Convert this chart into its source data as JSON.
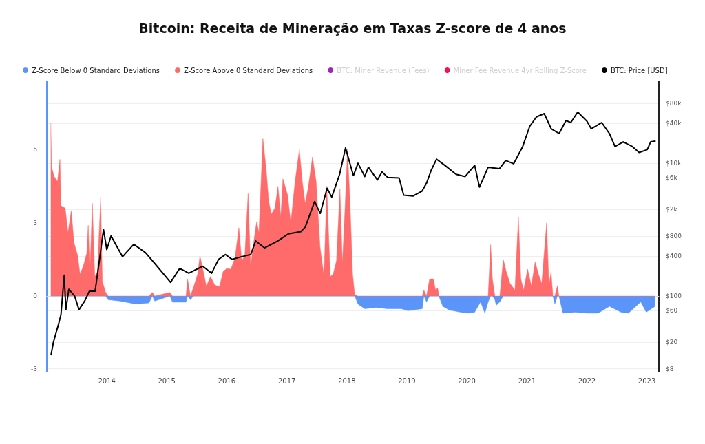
{
  "chart_data": {
    "type": "area",
    "title": "Bitcoin: Receita de Mineração em Taxas Z-score de 4 anos",
    "x": [
      "2013-01-25",
      "2013-01-30",
      "2013-02-14",
      "2013-03-07",
      "2013-03-22",
      "2013-03-28",
      "2013-04-23",
      "2013-05-10",
      "2013-05-30",
      "2013-06-15",
      "2013-07-08",
      "2013-07-22",
      "2013-08-10",
      "2013-09-01",
      "2013-09-10",
      "2013-09-20",
      "2013-10-05",
      "2013-10-20",
      "2013-11-05",
      "2013-11-25",
      "2013-12-05",
      "2013-12-25",
      "2014-01-10",
      "2014-03-20",
      "2014-06-28",
      "2014-09-15",
      "2014-10-05",
      "2014-10-20",
      "2015-01-20",
      "2015-02-05",
      "2015-04-28",
      "2015-05-08",
      "2015-05-25",
      "2015-06-12",
      "2015-07-08",
      "2015-07-22",
      "2015-08-12",
      "2015-08-30",
      "2015-09-24",
      "2015-10-20",
      "2015-11-18",
      "2015-12-10",
      "2016-01-01",
      "2016-01-26",
      "2016-02-20",
      "2016-03-15",
      "2016-04-01",
      "2016-04-20",
      "2016-05-10",
      "2016-05-25",
      "2016-06-15",
      "2016-07-01",
      "2016-07-15",
      "2016-08-08",
      "2016-08-28",
      "2016-09-12",
      "2016-09-28",
      "2016-10-20",
      "2016-11-08",
      "2016-11-25",
      "2016-12-08",
      "2017-01-05",
      "2017-01-25",
      "2017-02-20",
      "2017-03-18",
      "2017-04-05",
      "2017-04-22",
      "2017-05-10",
      "2017-06-06",
      "2017-06-28",
      "2017-07-22",
      "2017-08-15",
      "2017-09-01",
      "2017-09-22",
      "2017-10-10",
      "2017-10-30",
      "2017-11-20",
      "2017-12-05",
      "2017-12-20",
      "2018-01-05",
      "2018-01-20",
      "2018-02-05",
      "2018-02-18",
      "2018-03-10",
      "2018-04-20",
      "2018-06-28",
      "2018-09-05",
      "2018-11-28",
      "2019-01-08",
      "2019-04-05",
      "2019-04-15",
      "2019-05-01",
      "2019-05-20",
      "2019-06-12",
      "2019-06-25",
      "2019-07-08",
      "2019-07-15",
      "2019-08-08",
      "2019-09-15",
      "2019-11-25",
      "2020-01-08",
      "2020-02-18",
      "2020-03-25",
      "2020-04-20",
      "2020-05-10",
      "2020-05-25",
      "2020-06-05",
      "2020-06-20",
      "2020-06-28",
      "2020-07-20",
      "2020-08-10",
      "2020-08-28",
      "2020-09-20",
      "2020-10-20",
      "2020-11-10",
      "2020-11-25",
      "2020-12-12",
      "2021-01-05",
      "2021-01-28",
      "2021-02-20",
      "2021-03-12",
      "2021-04-01",
      "2021-05-01",
      "2021-05-15",
      "2021-05-28",
      "2021-06-08",
      "2021-06-20",
      "2021-07-05",
      "2021-07-15",
      "2021-08-08",
      "2021-10-22",
      "2022-01-01",
      "2022-03-10",
      "2022-05-18",
      "2022-07-28",
      "2022-09-10",
      "2022-11-25",
      "2022-12-28",
      "2023-02-20"
    ],
    "series": [
      {
        "name": "Z-Score Below 0 Standard Deviations",
        "color": "#5b95f9",
        "values": [
          0,
          0,
          0,
          0,
          0,
          0,
          0,
          0,
          0,
          0,
          0,
          0,
          0,
          0,
          0,
          0,
          0,
          0,
          0,
          0,
          0,
          0,
          -0.15,
          -0.2,
          -0.33,
          -0.28,
          0,
          -0.2,
          0,
          -0.25,
          -0.25,
          0,
          -0.15,
          0,
          0,
          0,
          0,
          0,
          0,
          0,
          0,
          0,
          0,
          0,
          0,
          0,
          0,
          0,
          0,
          0,
          0,
          0,
          0,
          0,
          0,
          0,
          0,
          0,
          0,
          0,
          0,
          0,
          0,
          0,
          0,
          0,
          0,
          0,
          0,
          0,
          0,
          0,
          0,
          0,
          0,
          0,
          0,
          0,
          0,
          0,
          0,
          0,
          0,
          -0.33,
          -0.52,
          -0.47,
          -0.52,
          -0.52,
          -0.6,
          -0.52,
          0,
          -0.24,
          0,
          0,
          0,
          0,
          0,
          -0.42,
          -0.57,
          -0.66,
          -0.7,
          -0.66,
          -0.24,
          -0.7,
          -0.24,
          0,
          0,
          -0.15,
          -0.38,
          -0.24,
          0,
          0,
          0,
          0,
          0,
          0,
          0,
          0,
          0,
          0,
          0,
          0,
          0,
          0,
          0,
          0,
          -0.33,
          0,
          0,
          -0.7,
          -0.66,
          -0.7,
          -0.7,
          -0.42,
          -0.66,
          -0.7,
          -0.24,
          -0.66,
          -0.42
        ]
      },
      {
        "name": "Z-Score Above 0 Standard Deviations",
        "color": "#ff6b6b",
        "values": [
          7.1,
          5.3,
          4.9,
          4.7,
          5.6,
          3.7,
          3.6,
          2.6,
          3.5,
          2.2,
          1.65,
          0.9,
          1.2,
          1.75,
          2.9,
          0.9,
          3.8,
          0.8,
          1.0,
          4.05,
          0.6,
          0.15,
          0,
          0,
          0,
          0,
          0.15,
          0,
          0.15,
          0,
          0,
          0.7,
          0,
          0.35,
          0.9,
          1.65,
          1.0,
          0.4,
          0.8,
          0.45,
          0.38,
          1.0,
          1.13,
          1.1,
          1.55,
          2.8,
          1.45,
          1.65,
          4.2,
          1.2,
          2.3,
          3.05,
          2.6,
          6.45,
          5.2,
          3.9,
          3.35,
          3.6,
          4.5,
          3.25,
          4.8,
          4.15,
          3.0,
          4.7,
          6.0,
          4.7,
          3.8,
          4.4,
          5.7,
          4.7,
          2.0,
          0.8,
          4.5,
          0.8,
          0.9,
          1.45,
          4.4,
          1.35,
          3.45,
          6.0,
          3.9,
          0.9,
          0.05,
          0,
          0,
          0,
          0,
          0,
          0,
          0,
          0.24,
          0,
          0.7,
          0.7,
          0.24,
          0.33,
          0,
          0,
          0,
          0,
          0,
          0,
          0,
          0,
          0,
          2.1,
          0.7,
          0,
          0,
          0,
          1.5,
          1.0,
          0.52,
          0.24,
          3.25,
          0.7,
          0.24,
          1.1,
          0.42,
          1.4,
          0.9,
          0.52,
          3.0,
          0.42,
          1.0,
          0,
          0,
          0.42,
          0,
          0,
          0,
          0,
          0,
          0,
          0,
          0,
          0,
          0,
          0
        ]
      },
      {
        "name": "BTC: Miner Revenue (Fees)",
        "color": "#9c27b0",
        "values": [
          null,
          null,
          null,
          null,
          null,
          null,
          null,
          null,
          null,
          null,
          null,
          null,
          null,
          null,
          null,
          null,
          null,
          null,
          null,
          null,
          null,
          null,
          null,
          null,
          null,
          null,
          null,
          null,
          null,
          null,
          null,
          null,
          null,
          null,
          null,
          null,
          null,
          null,
          null,
          null,
          null,
          null,
          null,
          null,
          null,
          null,
          null,
          null,
          null,
          null,
          null,
          null,
          null,
          null,
          null,
          null,
          null,
          null,
          null,
          null,
          null,
          null,
          null,
          null,
          null,
          null,
          null,
          null,
          null,
          null,
          null,
          null,
          null,
          null,
          null,
          null,
          null,
          null,
          null,
          null,
          null,
          null,
          null,
          null,
          null,
          null,
          null,
          null,
          null,
          null,
          null,
          null,
          null,
          null,
          null,
          null,
          null,
          null,
          null,
          null,
          null,
          null,
          null,
          null,
          null,
          null,
          null,
          null,
          null,
          null,
          null,
          null,
          null,
          null,
          null,
          null,
          null,
          null,
          null,
          null,
          null,
          null,
          null,
          null,
          null,
          null,
          null,
          null,
          null,
          null,
          null,
          null,
          null,
          null,
          null,
          null,
          null,
          null,
          null
        ]
      },
      {
        "name": "Miner Fee Revenue 4yr Rolling Z-Score",
        "color": "#f0134d",
        "values": [
          null,
          null,
          null,
          null,
          null,
          null,
          null,
          null,
          null,
          null,
          null,
          null,
          null,
          null,
          null,
          null,
          null,
          null,
          null,
          null,
          null,
          null,
          null,
          null,
          null,
          null,
          null,
          null,
          null,
          null,
          null,
          null,
          null,
          null,
          null,
          null,
          null,
          null,
          null,
          null,
          null,
          null,
          null,
          null,
          null,
          null,
          null,
          null,
          null,
          null,
          null,
          null,
          null,
          null,
          null,
          null,
          null,
          null,
          null,
          null,
          null,
          null,
          null,
          null,
          null,
          null,
          null,
          null,
          null,
          null,
          null,
          null,
          null,
          null,
          null,
          null,
          null,
          null,
          null,
          null,
          null,
          null,
          null,
          null,
          null,
          null,
          null,
          null,
          null,
          null,
          null,
          null,
          null,
          null,
          null,
          null,
          null,
          null,
          null,
          null,
          null,
          null,
          null,
          null,
          null,
          null,
          null,
          null,
          null,
          null,
          null,
          null,
          null,
          null,
          null,
          null,
          null,
          null,
          null,
          null,
          null,
          null,
          null,
          null,
          null,
          null,
          null,
          null,
          null,
          null,
          null,
          null,
          null,
          null,
          null,
          null,
          null,
          null,
          null
        ]
      },
      {
        "name": "BTC: Price [USD]",
        "type": "line",
        "axis": "y2",
        "color": "#000000",
        "x": [
          "2013-01-27",
          "2013-02-10",
          "2013-03-14",
          "2013-03-28",
          "2013-04-17",
          "2013-04-27",
          "2013-05-15",
          "2013-06-19",
          "2013-07-16",
          "2013-08-21",
          "2013-09-17",
          "2013-10-22",
          "2013-11-18",
          "2013-12-12",
          "2014-01-01",
          "2014-01-27",
          "2014-04-07",
          "2014-06-14",
          "2014-08-24",
          "2014-10-19",
          "2015-01-24",
          "2015-03-21",
          "2015-05-15",
          "2015-08-08",
          "2015-10-01",
          "2015-11-12",
          "2015-12-24",
          "2016-02-03",
          "2016-04-01",
          "2016-05-26",
          "2016-06-25",
          "2016-08-18",
          "2016-11-08",
          "2017-01-10",
          "2017-03-27",
          "2017-04-23",
          "2017-06-19",
          "2017-07-23",
          "2017-09-03",
          "2017-10-01",
          "2017-11-18",
          "2017-12-24",
          "2018-02-10",
          "2018-03-10",
          "2018-04-20",
          "2018-05-12",
          "2018-07-06",
          "2018-08-03",
          "2018-09-07",
          "2018-11-15",
          "2018-12-13",
          "2019-02-07",
          "2019-04-04",
          "2019-05-01",
          "2019-05-30",
          "2019-07-01",
          "2019-08-20",
          "2019-10-28",
          "2019-12-22",
          "2020-02-18",
          "2020-03-18",
          "2020-05-10",
          "2020-07-18",
          "2020-08-25",
          "2020-10-12",
          "2020-12-06",
          "2021-01-18",
          "2021-02-28",
          "2021-04-16",
          "2021-05-29",
          "2021-07-16",
          "2021-08-27",
          "2021-09-25",
          "2021-11-06",
          "2022-01-01",
          "2022-01-27",
          "2022-04-01",
          "2022-05-18",
          "2022-06-21",
          "2022-08-10",
          "2022-10-05",
          "2022-11-15",
          "2023-01-03",
          "2023-01-24",
          "2023-02-20"
        ],
        "values": [
          13,
          20,
          38,
          52,
          205,
          62,
          126,
          100,
          62,
          85,
          118,
          118,
          357,
          1000,
          500,
          800,
          390,
          600,
          450,
          310,
          160,
          260,
          220,
          280,
          220,
          355,
          420,
          355,
          390,
          420,
          675,
          530,
          675,
          860,
          930,
          1090,
          2650,
          1750,
          4200,
          3080,
          6800,
          17000,
          6500,
          10000,
          6300,
          8700,
          5600,
          7400,
          6100,
          6000,
          3300,
          3200,
          3800,
          5000,
          7900,
          11500,
          9300,
          6800,
          6300,
          9300,
          4360,
          8700,
          8300,
          11000,
          9800,
          17800,
          36000,
          50000,
          56000,
          33000,
          28000,
          44000,
          41000,
          59000,
          43000,
          33000,
          41000,
          28000,
          17800,
          21000,
          17800,
          14500,
          16000,
          21000,
          21500
        ]
      }
    ],
    "xlim": [
      "2013-01-01",
      "2023-03-15"
    ],
    "xticks": [
      "2014",
      "2015",
      "2016",
      "2017",
      "2018",
      "2019",
      "2020",
      "2021",
      "2022",
      "2023"
    ],
    "ylim": [
      -3.1,
      8.8
    ],
    "yticks": [
      -3,
      0,
      3,
      6
    ],
    "y2lim": [
      7.2,
      172000
    ],
    "y2ticks": [
      {
        "value": 8,
        "label": "$8"
      },
      {
        "value": 20,
        "label": "$20"
      },
      {
        "value": 60,
        "label": "$60"
      },
      {
        "value": 100,
        "label": "$100"
      },
      {
        "value": 400,
        "label": "$400"
      },
      {
        "value": 800,
        "label": "$800"
      },
      {
        "value": 2000,
        "label": "$2k"
      },
      {
        "value": 6000,
        "label": "$6k"
      },
      {
        "value": 10000,
        "label": "$10k"
      },
      {
        "value": 40000,
        "label": "$40k"
      },
      {
        "value": 80000,
        "label": "$80k"
      }
    ],
    "log": "y2",
    "grid": "y",
    "legend": "top left",
    "marker": "none"
  }
}
